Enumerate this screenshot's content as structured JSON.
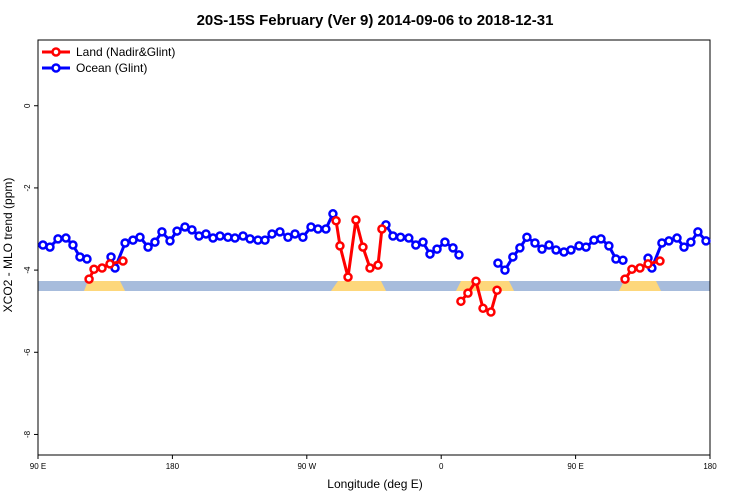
{
  "chart_data": {
    "type": "line",
    "title": "20S-15S February (Ver 9)   2014-09-06 to 2018-12-31",
    "xlabel": "Longitude (deg E)",
    "ylabel": "XCO2 - MLO trend (ppm)",
    "xlim": [
      90,
      540
    ],
    "xticks": [
      {
        "value": 90,
        "label": "90 E"
      },
      180,
      {
        "value": 270,
        "label": "90 W"
      },
      {
        "value": 360,
        "label": "0"
      },
      {
        "value": 450,
        "label": "90 E"
      },
      {
        "value": 540,
        "label": "180"
      }
    ],
    "ylim": [
      -8.5,
      1.6
    ],
    "yticks": [
      0,
      -2,
      -4,
      -6,
      -8
    ],
    "legend": "top-left",
    "series": [
      {
        "name": "Land (Nadir&Glint)",
        "color": "#ff0000",
        "x": [
          124.2,
          127.5,
          132.9,
          138.2,
          146.9,
          null,
          289.6,
          292.2,
          297.6,
          302.9,
          307.6,
          312.3,
          317.7,
          320.3,
          null,
          373.2,
          377.9,
          383.3,
          388.0,
          393.3,
          397.4,
          null,
          483.1,
          487.7,
          493.1,
          498.5,
          506.5
        ],
        "values": [
          -4.22,
          -3.98,
          -3.95,
          -3.85,
          -3.78,
          null,
          -2.8,
          -3.41,
          -4.17,
          -2.78,
          -3.44,
          -3.95,
          -3.88,
          -3.0,
          null,
          -4.76,
          -4.56,
          -4.27,
          -4.93,
          -5.02,
          -4.49,
          null,
          -4.22,
          -3.98,
          -3.95,
          -3.85,
          -3.78
        ]
      },
      {
        "name": "Ocean (Glint)",
        "color": "#0000ff",
        "x": [
          93.3,
          98.0,
          103.4,
          108.7,
          113.4,
          118.1,
          122.8,
          null,
          138.9,
          141.6,
          148.3,
          153.6,
          158.3,
          163.7,
          168.3,
          173.0,
          178.4,
          183.1,
          188.4,
          193.1,
          197.8,
          202.5,
          207.2,
          211.9,
          217.2,
          221.9,
          227.3,
          232.0,
          237.3,
          242.0,
          246.7,
          252.0,
          257.4,
          262.1,
          267.4,
          272.8,
          277.5,
          282.8,
          287.5,
          null,
          323.0,
          327.7,
          332.8,
          338.3,
          343.0,
          347.8,
          352.5,
          357.2,
          362.5,
          367.9,
          371.9,
          null,
          398.0,
          402.7,
          408.0,
          412.7,
          417.4,
          422.8,
          427.5,
          432.2,
          436.9,
          442.2,
          446.9,
          452.3,
          457.0,
          462.3,
          467.0,
          472.3,
          477.0,
          481.7,
          null,
          498.5,
          501.1,
          507.8,
          512.5,
          517.9,
          522.6,
          527.2,
          531.9,
          537.3
        ],
        "values": [
          -3.39,
          -3.44,
          -3.24,
          -3.22,
          -3.39,
          -3.68,
          -3.73,
          null,
          -3.68,
          -3.95,
          -3.34,
          -3.27,
          -3.2,
          -3.44,
          -3.32,
          -3.07,
          -3.29,
          -3.05,
          -2.95,
          -3.02,
          -3.17,
          -3.12,
          -3.22,
          -3.17,
          -3.2,
          -3.22,
          -3.17,
          -3.24,
          -3.27,
          -3.27,
          -3.12,
          -3.07,
          -3.2,
          -3.12,
          -3.2,
          -2.95,
          -3.0,
          -3.0,
          -2.63,
          null,
          -2.9,
          -3.17,
          -3.2,
          -3.22,
          -3.39,
          -3.32,
          -3.61,
          -3.49,
          -3.32,
          -3.46,
          -3.63,
          null,
          -3.83,
          -4.0,
          -3.68,
          -3.46,
          -3.2,
          -3.34,
          -3.49,
          -3.39,
          -3.51,
          -3.56,
          -3.51,
          -3.41,
          -3.44,
          -3.27,
          -3.24,
          -3.41,
          -3.73,
          -3.76,
          null,
          -3.71,
          -3.95,
          -3.34,
          -3.29,
          -3.22,
          -3.44,
          -3.32,
          -3.07,
          -3.29
        ]
      }
    ]
  }
}
